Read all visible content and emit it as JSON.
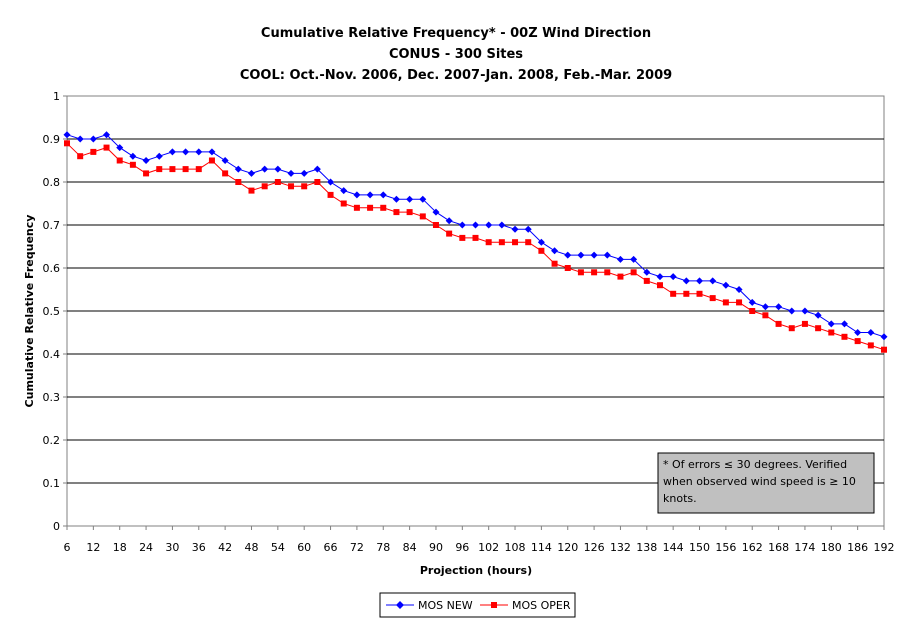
{
  "chart_data": {
    "type": "line",
    "title_lines": [
      "Cumulative Relative Frequency* - 00Z Wind Direction",
      "CONUS - 300 Sites",
      "COOL: Oct.-Nov. 2006, Dec. 2007-Jan. 2008, Feb.-Mar. 2009"
    ],
    "xlabel": "Projection (hours)",
    "ylabel": "Cumulative Relative Frequency",
    "xlim": [
      6,
      192
    ],
    "ylim": [
      0,
      1
    ],
    "x_ticks": [
      6,
      12,
      18,
      24,
      30,
      36,
      42,
      48,
      54,
      60,
      66,
      72,
      78,
      84,
      90,
      96,
      102,
      108,
      114,
      120,
      126,
      132,
      138,
      144,
      150,
      156,
      162,
      168,
      174,
      180,
      186,
      192
    ],
    "y_ticks": [
      "0",
      "0.1",
      "0.2",
      "0.3",
      "0.4",
      "0.5",
      "0.6",
      "0.7",
      "0.8",
      "0.9",
      "1"
    ],
    "grid": "horizontal",
    "legend_position": "bottom",
    "annotation": "* Of errors ≤ 30 degrees. Verified when observed wind speed is ≥ 10 knots.",
    "annotation_lines": [
      "* Of errors ≤ 30 degrees. Verified",
      "when observed wind speed is ≥ 10",
      "knots."
    ],
    "x": [
      6,
      9,
      12,
      15,
      18,
      21,
      24,
      27,
      30,
      33,
      36,
      39,
      42,
      45,
      48,
      51,
      54,
      57,
      60,
      63,
      66,
      69,
      72,
      75,
      78,
      81,
      84,
      87,
      90,
      93,
      96,
      99,
      102,
      105,
      108,
      111,
      114,
      117,
      120,
      123,
      126,
      129,
      132,
      135,
      138,
      141,
      144,
      147,
      150,
      153,
      156,
      159,
      162,
      165,
      168,
      171,
      174,
      177,
      180,
      183,
      186,
      189,
      192
    ],
    "series": [
      {
        "name": "MOS NEW",
        "color": "#0000ff",
        "marker": "diamond",
        "values": [
          0.91,
          0.9,
          0.9,
          0.91,
          0.88,
          0.86,
          0.85,
          0.86,
          0.87,
          0.87,
          0.87,
          0.87,
          0.85,
          0.83,
          0.82,
          0.83,
          0.83,
          0.82,
          0.82,
          0.83,
          0.8,
          0.78,
          0.77,
          0.77,
          0.77,
          0.76,
          0.76,
          0.76,
          0.73,
          0.71,
          0.7,
          0.7,
          0.7,
          0.7,
          0.69,
          0.69,
          0.66,
          0.64,
          0.63,
          0.63,
          0.63,
          0.63,
          0.62,
          0.62,
          0.59,
          0.58,
          0.58,
          0.57,
          0.57,
          0.57,
          0.56,
          0.55,
          0.52,
          0.51,
          0.51,
          0.5,
          0.5,
          0.49,
          0.47,
          0.47,
          0.45,
          0.45,
          0.44
        ]
      },
      {
        "name": "MOS OPER",
        "color": "#ff0000",
        "marker": "square",
        "values": [
          0.89,
          0.86,
          0.87,
          0.88,
          0.85,
          0.84,
          0.82,
          0.83,
          0.83,
          0.83,
          0.83,
          0.85,
          0.82,
          0.8,
          0.78,
          0.79,
          0.8,
          0.79,
          0.79,
          0.8,
          0.77,
          0.75,
          0.74,
          0.74,
          0.74,
          0.73,
          0.73,
          0.72,
          0.7,
          0.68,
          0.67,
          0.67,
          0.66,
          0.66,
          0.66,
          0.66,
          0.64,
          0.61,
          0.6,
          0.59,
          0.59,
          0.59,
          0.58,
          0.59,
          0.57,
          0.56,
          0.54,
          0.54,
          0.54,
          0.53,
          0.52,
          0.52,
          0.5,
          0.49,
          0.47,
          0.46,
          0.47,
          0.46,
          0.45,
          0.44,
          0.43,
          0.42,
          0.41
        ]
      }
    ]
  }
}
